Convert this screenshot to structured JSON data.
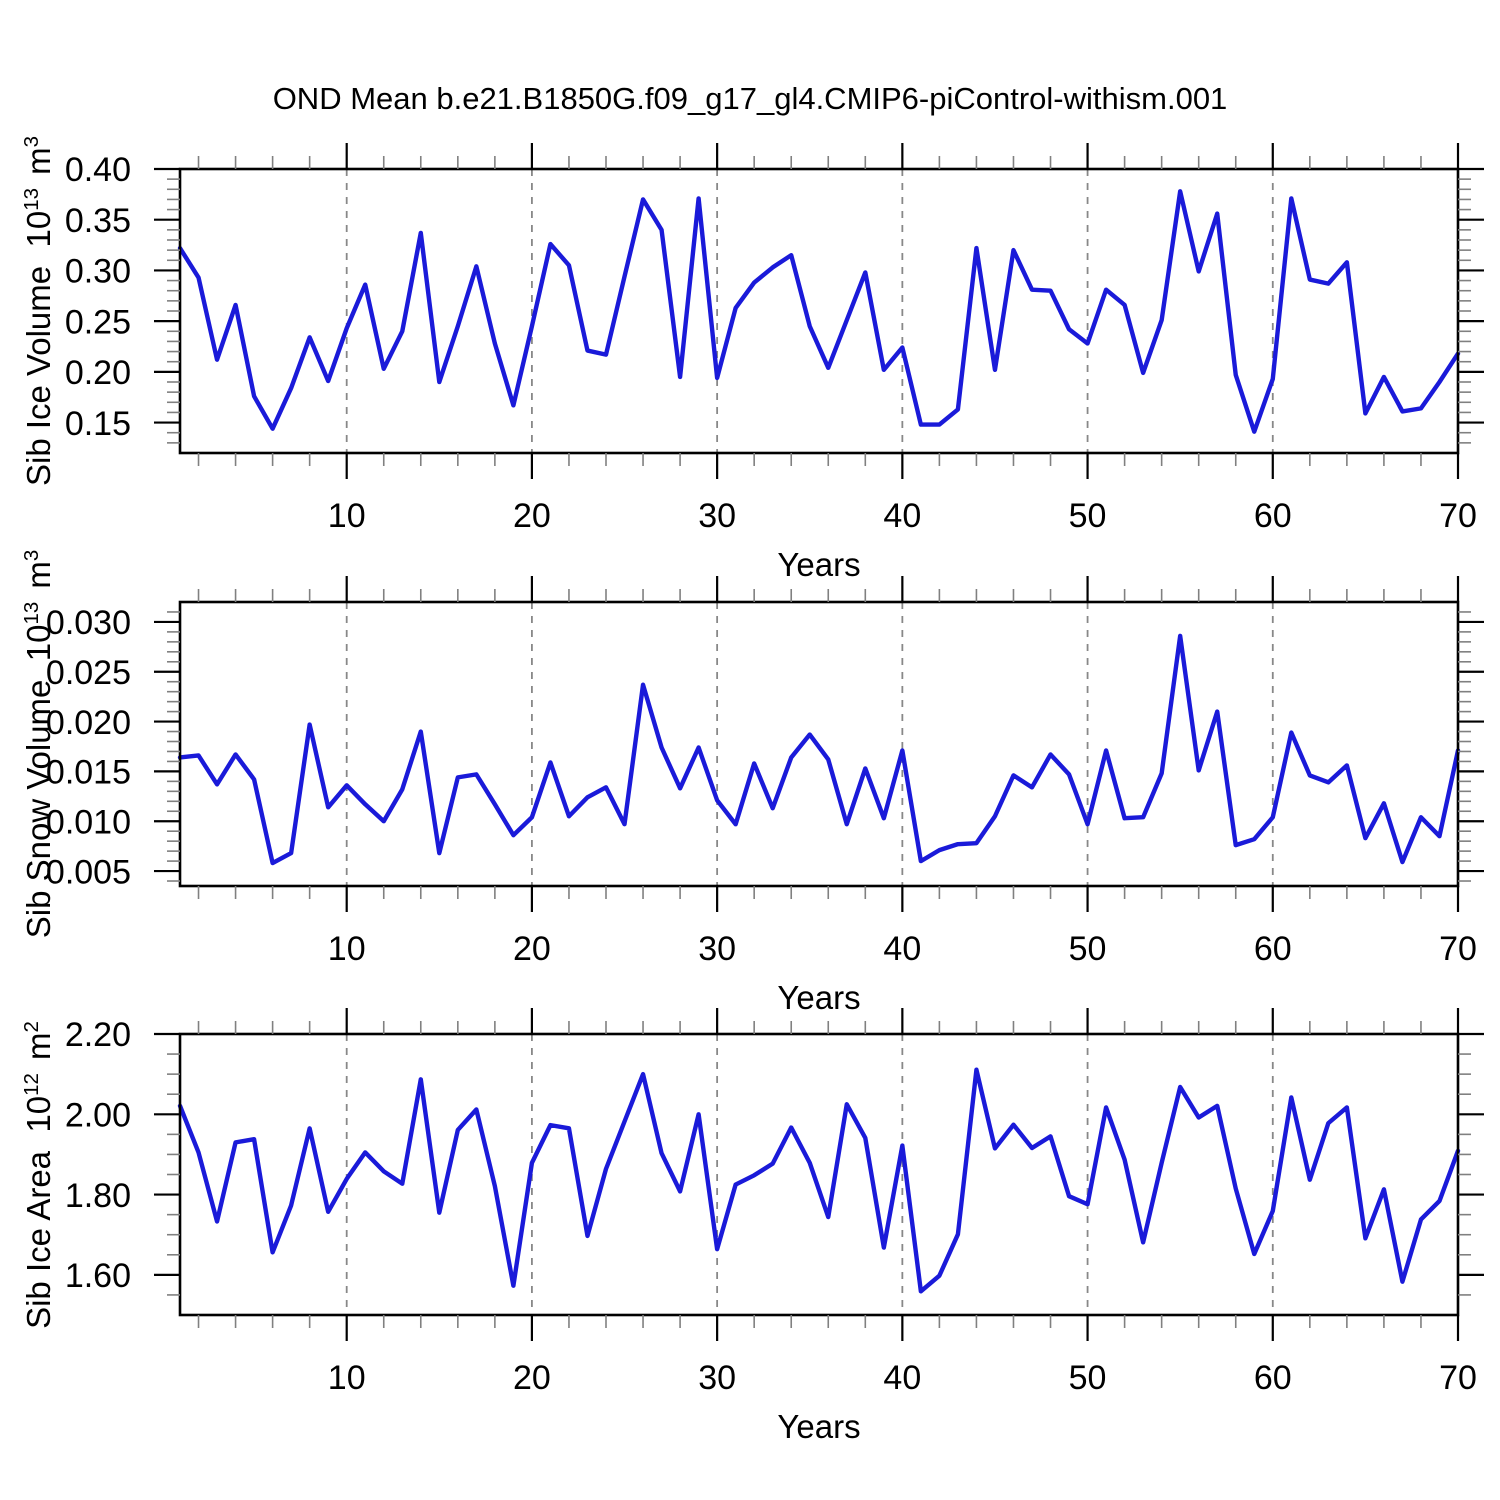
{
  "title": "OND Mean b.e21.B1850G.f09_g17_gl4.CMIP6-piControl-withism.001",
  "line_color": "#1a1ad9",
  "grid_color": "#888888",
  "axis_color": "#000000",
  "minor_tick_color": "#808080",
  "chart_data": [
    {
      "type": "line",
      "ylabel": {
        "name": "Sib Ice Volume",
        "base": "10",
        "exp": "13",
        "unit": "m",
        "unit_exp": "3"
      },
      "xlabel": "Years",
      "xlim": [
        1,
        70
      ],
      "ylim": [
        0.12,
        0.4
      ],
      "xticks": [
        10,
        20,
        30,
        40,
        50,
        60,
        70
      ],
      "xtick_labels": [
        "10",
        "20",
        "30",
        "40",
        "50",
        "60",
        "70"
      ],
      "xminor_step": 2,
      "grid_x": [
        10,
        20,
        30,
        40,
        50,
        60
      ],
      "yticks": [
        0.15,
        0.2,
        0.25,
        0.3,
        0.35,
        0.4
      ],
      "ytick_labels": [
        "0.15",
        "0.20",
        "0.25",
        "0.30",
        "0.35",
        "0.40"
      ],
      "yminor_step": 0.01,
      "x_start": 1,
      "values": [
        0.322,
        0.293,
        0.212,
        0.266,
        0.176,
        0.144,
        0.184,
        0.234,
        0.191,
        0.243,
        0.286,
        0.203,
        0.24,
        0.337,
        0.19,
        0.245,
        0.304,
        0.228,
        0.167,
        0.245,
        0.326,
        0.305,
        0.221,
        0.217,
        0.294,
        0.37,
        0.34,
        0.195,
        0.371,
        0.194,
        0.263,
        0.288,
        0.303,
        0.315,
        0.245,
        0.204,
        0.251,
        0.298,
        0.202,
        0.224,
        0.148,
        0.148,
        0.163,
        0.322,
        0.202,
        0.32,
        0.281,
        0.28,
        0.242,
        0.228,
        0.281,
        0.266,
        0.199,
        0.251,
        0.378,
        0.299,
        0.356,
        0.197,
        0.141,
        0.193,
        0.371,
        0.291,
        0.287,
        0.308,
        0.159,
        0.195,
        0.161,
        0.164,
        0.19,
        0.218
      ]
    },
    {
      "type": "line",
      "ylabel": {
        "name": "Sib Snow Volume",
        "base": "10",
        "exp": "13",
        "unit": "m",
        "unit_exp": "3"
      },
      "xlabel": "Years",
      "xlim": [
        1,
        70
      ],
      "ylim": [
        0.0035,
        0.032
      ],
      "xticks": [
        10,
        20,
        30,
        40,
        50,
        60,
        70
      ],
      "xtick_labels": [
        "10",
        "20",
        "30",
        "40",
        "50",
        "60",
        "70"
      ],
      "xminor_step": 2,
      "grid_x": [
        10,
        20,
        30,
        40,
        50,
        60
      ],
      "yticks": [
        0.005,
        0.01,
        0.015,
        0.02,
        0.025,
        0.03
      ],
      "ytick_labels": [
        "0.005",
        "0.010",
        "0.015",
        "0.020",
        "0.025",
        "0.030"
      ],
      "yminor_step": 0.001,
      "x_start": 1,
      "values": [
        0.0164,
        0.0166,
        0.0137,
        0.0167,
        0.0142,
        0.0058,
        0.0068,
        0.0197,
        0.0114,
        0.0136,
        0.0117,
        0.01,
        0.0132,
        0.019,
        0.0068,
        0.0144,
        0.0147,
        0.0117,
        0.0086,
        0.0104,
        0.0159,
        0.0105,
        0.0124,
        0.0134,
        0.0097,
        0.0237,
        0.0174,
        0.0133,
        0.0174,
        0.0121,
        0.0097,
        0.0158,
        0.0113,
        0.0164,
        0.0187,
        0.0162,
        0.0097,
        0.0153,
        0.0103,
        0.0171,
        0.006,
        0.0071,
        0.0077,
        0.0078,
        0.0105,
        0.0146,
        0.0134,
        0.0167,
        0.0147,
        0.0097,
        0.0171,
        0.0103,
        0.0104,
        0.0148,
        0.0286,
        0.0151,
        0.021,
        0.0076,
        0.0082,
        0.0104,
        0.0189,
        0.0146,
        0.0139,
        0.0156,
        0.0083,
        0.0118,
        0.0059,
        0.0104,
        0.0085,
        0.0171
      ]
    },
    {
      "type": "line",
      "ylabel": {
        "name": "Sib Ice Area",
        "base": "10",
        "exp": "12",
        "unit": "m",
        "unit_exp": "2"
      },
      "xlabel": "Years",
      "xlim": [
        1,
        70
      ],
      "ylim": [
        1.5,
        2.2
      ],
      "xticks": [
        10,
        20,
        30,
        40,
        50,
        60,
        70
      ],
      "xtick_labels": [
        "10",
        "20",
        "30",
        "40",
        "50",
        "60",
        "70"
      ],
      "xminor_step": 2,
      "grid_x": [
        10,
        20,
        30,
        40,
        50,
        60
      ],
      "yticks": [
        1.6,
        1.8,
        2.0,
        2.2
      ],
      "ytick_labels": [
        "1.60",
        "1.80",
        "2.00",
        "2.20"
      ],
      "yminor_step": 0.05,
      "x_start": 1,
      "values": [
        2.021,
        1.905,
        1.733,
        1.93,
        1.938,
        1.656,
        1.773,
        1.965,
        1.757,
        1.839,
        1.905,
        1.858,
        1.827,
        2.087,
        1.755,
        1.961,
        2.012,
        1.821,
        1.573,
        1.879,
        1.973,
        1.965,
        1.697,
        1.864,
        1.982,
        2.1,
        1.903,
        1.808,
        2.0,
        1.664,
        1.825,
        1.848,
        1.877,
        1.967,
        1.879,
        1.744,
        2.025,
        1.941,
        1.668,
        1.922,
        1.559,
        1.598,
        1.701,
        2.111,
        1.915,
        1.974,
        1.916,
        1.945,
        1.796,
        1.776,
        2.017,
        1.887,
        1.681,
        1.879,
        2.068,
        1.992,
        2.021,
        1.815,
        1.652,
        1.759,
        2.042,
        1.837,
        1.978,
        2.017,
        1.691,
        1.813,
        1.583,
        1.738,
        1.784,
        1.909
      ]
    }
  ]
}
